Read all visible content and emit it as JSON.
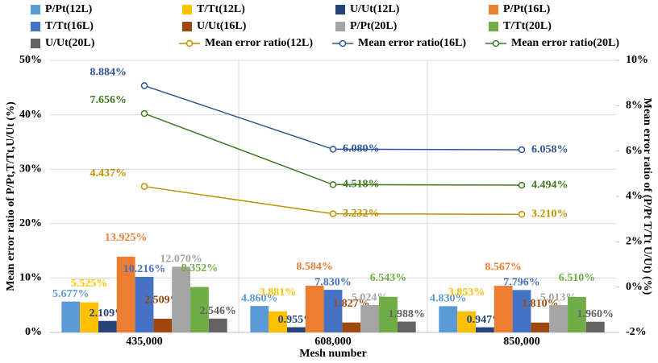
{
  "chart_data": {
    "type": "bar",
    "x_label": "Mesh number",
    "y_label": "Mean error ratio of P/Pt,T/Tt,U/Ut (%)",
    "y2_label": "Mean error ratio of (P/Pt T/Tt U/Ut) (%)",
    "categories": [
      "435,000",
      "608,000",
      "850,000"
    ],
    "legend": "top",
    "grid": true,
    "ylim": [
      0,
      50
    ],
    "yticks": [
      {
        "value": 0,
        "label": "0%"
      },
      {
        "value": 10,
        "label": "10%"
      },
      {
        "value": 20,
        "label": "20%"
      },
      {
        "value": 30,
        "label": "30%"
      },
      {
        "value": 40,
        "label": "40%"
      },
      {
        "value": 50,
        "label": "50%"
      }
    ],
    "y2lim": [
      -2,
      10
    ],
    "y2ticks": [
      {
        "value": -2,
        "label": "-2%"
      },
      {
        "value": 0,
        "label": "0%"
      },
      {
        "value": 2,
        "label": "2%"
      },
      {
        "value": 4,
        "label": "4%"
      },
      {
        "value": 6,
        "label": "6%"
      },
      {
        "value": 8,
        "label": "8%"
      },
      {
        "value": 10,
        "label": "10%"
      }
    ],
    "series": [
      {
        "name": "P/Pt(12L)",
        "color": "#5b9bd5",
        "values": [
          5.677,
          4.86,
          4.83
        ],
        "value_labels": [
          "5.677%",
          "4.860%",
          "4.830%"
        ]
      },
      {
        "name": "T/Tt(12L)",
        "color": "#ffc000",
        "values": [
          5.525,
          3.881,
          3.853
        ],
        "value_labels": [
          "5.525%",
          "3.881%",
          "3.853%"
        ]
      },
      {
        "name": "U/Ut(12L)",
        "color": "#264478",
        "values": [
          2.109,
          0.955,
          0.947
        ],
        "value_labels": [
          "2.109%",
          "0.955%",
          "0.947%"
        ]
      },
      {
        "name": "P/Pt(16L)",
        "color": "#ed7d31",
        "values": [
          13.925,
          8.584,
          8.567
        ],
        "value_labels": [
          "13.925%",
          "8.584%",
          "8.567%"
        ]
      },
      {
        "name": "T/Tt(16L)",
        "color": "#4472c4",
        "values": [
          10.216,
          7.83,
          7.796
        ],
        "value_labels": [
          "10.216%",
          "7.830%",
          "7.796%"
        ]
      },
      {
        "name": "U/Ut(16L)",
        "color": "#9e480e",
        "values": [
          2.509,
          1.827,
          1.81
        ],
        "value_labels": [
          "2.509%",
          "1.827%",
          "1.810%"
        ]
      },
      {
        "name": "P/Pt(20L)",
        "color": "#a5a5a5",
        "values": [
          12.07,
          5.024,
          5.013
        ],
        "value_labels": [
          "12.070%",
          "5.024%",
          "5.013%"
        ]
      },
      {
        "name": "T/Tt(20L)",
        "color": "#70ad47",
        "values": [
          8.352,
          6.543,
          6.51
        ],
        "value_labels": [
          "8.352%",
          "6.543%",
          "6.510%"
        ]
      },
      {
        "name": "U/Ut(20L)",
        "color": "#636363",
        "values": [
          2.546,
          1.988,
          1.96
        ],
        "value_labels": [
          "2.546%",
          "1.988%",
          "1.960%"
        ]
      },
      {
        "name": "Mean error ratio(12L)",
        "type": "line",
        "axis": "y2",
        "color": "#bf9000",
        "values": [
          4.437,
          3.232,
          3.21
        ],
        "value_labels": [
          "4.437%",
          "3.232%",
          "3.210%"
        ]
      },
      {
        "name": "Mean error ratio(16L)",
        "type": "line",
        "axis": "y2",
        "color": "#2e5597",
        "values": [
          8.884,
          6.08,
          6.058
        ],
        "value_labels": [
          "8.884%",
          "6.080%",
          "6.058%"
        ]
      },
      {
        "name": "Mean error ratio(20L)",
        "type": "line",
        "axis": "y2",
        "color": "#3f7a23",
        "values": [
          7.656,
          4.518,
          4.494
        ],
        "value_labels": [
          "7.656%",
          "4.518%",
          "4.494%"
        ]
      }
    ]
  }
}
